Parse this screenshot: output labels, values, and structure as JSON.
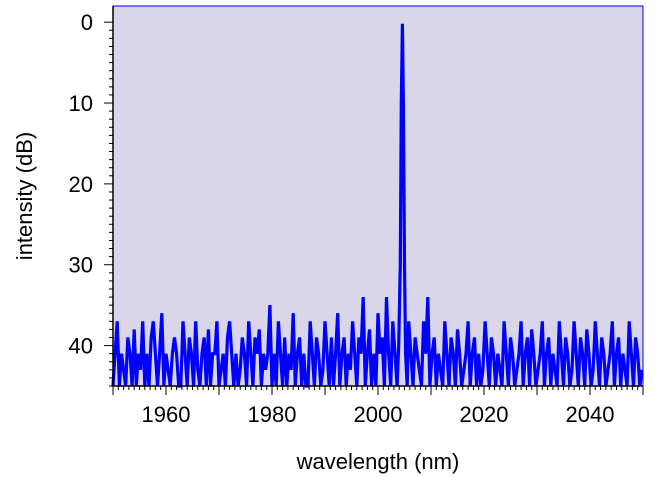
{
  "chart_data": {
    "type": "line",
    "title": "",
    "xlabel": "wavelength (nm)",
    "ylabel": "intensity (dB)",
    "xlim": [
      1950,
      2050
    ],
    "ylim": [
      45,
      -2
    ],
    "y_inverted": true,
    "grid": false,
    "legend": "none",
    "colors": {
      "plot_background": "#d9d6ea",
      "frame": "#0000ff",
      "series": "#0000ff"
    },
    "x_ticks": [
      1960,
      1980,
      2000,
      2020,
      2040
    ],
    "x_tick_labels": [
      "1960",
      "1980",
      "2000",
      "2020",
      "2040"
    ],
    "y_ticks": [
      0,
      10,
      20,
      30,
      40
    ],
    "y_tick_labels": [
      "0",
      "10",
      "20",
      "30",
      "40"
    ],
    "series": [
      {
        "peak": {
          "x": 2004.7,
          "y": 0.2
        },
        "noise_floor_range": [
          35,
          45
        ],
        "x": [
          1950.0,
          1950.4,
          1950.8,
          1951.2,
          1951.6,
          1952.0,
          1952.4,
          1952.8,
          1953.2,
          1953.6,
          1954.0,
          1954.4,
          1954.8,
          1955.2,
          1955.6,
          1956.0,
          1956.4,
          1956.8,
          1957.2,
          1957.6,
          1958.0,
          1958.4,
          1958.8,
          1959.2,
          1959.6,
          1960.0,
          1960.4,
          1960.8,
          1961.2,
          1961.6,
          1962.0,
          1962.4,
          1962.8,
          1963.2,
          1963.6,
          1964.0,
          1964.4,
          1964.8,
          1965.2,
          1965.6,
          1966.0,
          1966.4,
          1966.8,
          1967.2,
          1967.6,
          1968.0,
          1968.4,
          1968.8,
          1969.2,
          1969.6,
          1970.0,
          1970.4,
          1970.8,
          1971.2,
          1971.6,
          1972.0,
          1972.4,
          1972.8,
          1973.2,
          1973.6,
          1974.0,
          1974.4,
          1974.8,
          1975.2,
          1975.6,
          1976.0,
          1976.4,
          1976.8,
          1977.2,
          1977.6,
          1978.0,
          1978.4,
          1978.8,
          1979.2,
          1979.6,
          1980.0,
          1980.4,
          1980.8,
          1981.2,
          1981.6,
          1982.0,
          1982.4,
          1982.8,
          1983.2,
          1983.6,
          1984.0,
          1984.4,
          1984.8,
          1985.2,
          1985.6,
          1986.0,
          1986.4,
          1986.8,
          1987.2,
          1987.6,
          1988.0,
          1988.4,
          1988.8,
          1989.2,
          1989.6,
          1990.0,
          1990.4,
          1990.8,
          1991.2,
          1991.6,
          1992.0,
          1992.4,
          1992.8,
          1993.2,
          1993.6,
          1994.0,
          1994.4,
          1994.8,
          1995.2,
          1995.6,
          1996.0,
          1996.4,
          1996.8,
          1997.2,
          1997.6,
          1998.0,
          1998.4,
          1998.8,
          1999.2,
          1999.6,
          2000.0,
          2000.4,
          2000.8,
          2001.2,
          2001.6,
          2002.0,
          2002.4,
          2002.8,
          2003.2,
          2003.6,
          2003.9,
          2004.2,
          2004.4,
          2004.6,
          2004.8,
          2005.0,
          2005.2,
          2005.5,
          2005.8,
          2006.2,
          2006.6,
          2007.0,
          2007.4,
          2007.8,
          2008.2,
          2008.6,
          2009.0,
          2009.4,
          2009.8,
          2010.2,
          2010.6,
          2011.0,
          2011.4,
          2011.8,
          2012.2,
          2012.6,
          2013.0,
          2013.4,
          2013.8,
          2014.2,
          2014.6,
          2015.0,
          2015.4,
          2015.8,
          2016.2,
          2016.6,
          2017.0,
          2017.4,
          2017.8,
          2018.2,
          2018.6,
          2019.0,
          2019.4,
          2019.8,
          2020.2,
          2020.6,
          2021.0,
          2021.4,
          2021.8,
          2022.2,
          2022.6,
          2023.0,
          2023.4,
          2023.8,
          2024.2,
          2024.6,
          2025.0,
          2025.4,
          2025.8,
          2026.2,
          2026.6,
          2027.0,
          2027.4,
          2027.8,
          2028.2,
          2028.6,
          2029.0,
          2029.4,
          2029.8,
          2030.2,
          2030.6,
          2031.0,
          2031.4,
          2031.8,
          2032.2,
          2032.6,
          2033.0,
          2033.4,
          2033.8,
          2034.2,
          2034.6,
          2035.0,
          2035.4,
          2035.8,
          2036.2,
          2036.6,
          2037.0,
          2037.4,
          2037.8,
          2038.2,
          2038.6,
          2039.0,
          2039.4,
          2039.8,
          2040.2,
          2040.6,
          2041.0,
          2041.4,
          2041.8,
          2042.2,
          2042.6,
          2043.0,
          2043.4,
          2043.8,
          2044.2,
          2044.6,
          2045.0,
          2045.4,
          2045.8,
          2046.2,
          2046.6,
          2047.0,
          2047.4,
          2047.8,
          2048.2,
          2048.6,
          2049.0,
          2049.4,
          2049.8
        ],
        "y": [
          45,
          41,
          37,
          45,
          41,
          43,
          45,
          39,
          41,
          45,
          38,
          45,
          41,
          43,
          37,
          45,
          41,
          45,
          39,
          37,
          41,
          45,
          41,
          36,
          45,
          41,
          43,
          45,
          41,
          39,
          41,
          45,
          45,
          37,
          41,
          45,
          39,
          41,
          45,
          37,
          43,
          45,
          41,
          39,
          45,
          38,
          45,
          41,
          41,
          37,
          45,
          43,
          41,
          45,
          39,
          37,
          41,
          45,
          41,
          45,
          43,
          39,
          41,
          45,
          37,
          41,
          45,
          39,
          41,
          38,
          45,
          41,
          43,
          41,
          35,
          45,
          41,
          45,
          37,
          41,
          45,
          39,
          45,
          41,
          43,
          36,
          45,
          41,
          39,
          45,
          41,
          45,
          45,
          37,
          41,
          45,
          39,
          41,
          45,
          43,
          37,
          41,
          45,
          39,
          45,
          41,
          36,
          45,
          41,
          39,
          45,
          41,
          43,
          37,
          41,
          45,
          39,
          41,
          34,
          45,
          41,
          38,
          45,
          41,
          45,
          36,
          41,
          39,
          45,
          34,
          41,
          45,
          37,
          41,
          45,
          40,
          30,
          10,
          0.2,
          10,
          30,
          41,
          45,
          37,
          41,
          45,
          39,
          41,
          43,
          45,
          37,
          41,
          34,
          45,
          41,
          39,
          45,
          41,
          43,
          45,
          37,
          41,
          45,
          39,
          41,
          45,
          38,
          41,
          45,
          43,
          41,
          37,
          45,
          41,
          39,
          45,
          41,
          45,
          43,
          37,
          41,
          45,
          39,
          41,
          45,
          41,
          43,
          45,
          37,
          41,
          45,
          39,
          41,
          45,
          43,
          41,
          37,
          45,
          41,
          39,
          45,
          38,
          41,
          45,
          43,
          41,
          37,
          45,
          41,
          39,
          45,
          41,
          43,
          45,
          37,
          41,
          45,
          39,
          41,
          45,
          43,
          37,
          41,
          45,
          39,
          41,
          45,
          38,
          41,
          45,
          43,
          37,
          41,
          45,
          39,
          41,
          45,
          43,
          41,
          37,
          45,
          41,
          39,
          45,
          41,
          43,
          45,
          37,
          41,
          45,
          39,
          41,
          45,
          43
        ]
      }
    ]
  }
}
